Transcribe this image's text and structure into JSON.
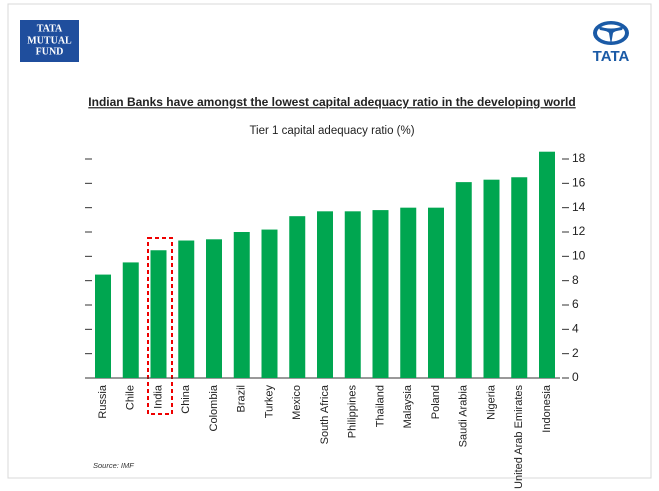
{
  "header": {
    "left_logo": [
      "TATA",
      "MUTUAL",
      "FUND"
    ],
    "right_logo": "TATA"
  },
  "chart_data": {
    "type": "bar",
    "title": "Indian Banks have amongst the lowest capital adequacy ratio in the developing world",
    "subtitle": "Tier 1 capital adequacy ratio (%)",
    "categories": [
      "Russia",
      "Chile",
      "India",
      "China",
      "Colombia",
      "Brazil",
      "Turkey",
      "Mexico",
      "South Africa",
      "Philippines",
      "Thailand",
      "Malaysia",
      "Poland",
      "Saudi Arabia",
      "Nigeria",
      "United Arab Emirates",
      "Indonesia"
    ],
    "values": [
      8.5,
      9.5,
      10.5,
      11.3,
      11.4,
      12.0,
      12.2,
      13.3,
      13.7,
      13.7,
      13.8,
      14.0,
      14.0,
      16.1,
      16.3,
      16.5,
      18.6
    ],
    "color": "#00a650",
    "ylim": [
      0,
      18
    ],
    "yticks": [
      0,
      2,
      4,
      6,
      8,
      10,
      12,
      14,
      16,
      18
    ],
    "grid": false,
    "source": "Source: IMF"
  }
}
